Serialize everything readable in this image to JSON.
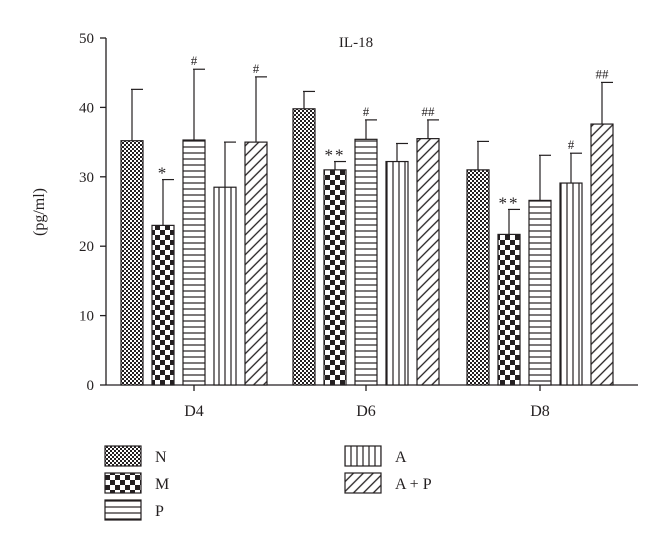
{
  "chart_data": {
    "type": "bar",
    "title": "IL-18",
    "xlabel": "",
    "ylabel": "(pg/ml)",
    "ylim": [
      0,
      50
    ],
    "yticks": [
      0,
      10,
      20,
      30,
      40,
      50
    ],
    "grid": false,
    "legend_position": "bottom",
    "categories": [
      "D4",
      "D6",
      "D8"
    ],
    "series": [
      {
        "name": "N",
        "pattern": "checker-fine",
        "values": [
          35.2,
          39.8,
          31.0
        ],
        "error": [
          7.4,
          2.5,
          4.1
        ],
        "annotations": [
          "",
          "",
          ""
        ]
      },
      {
        "name": "M",
        "pattern": "checker-coarse",
        "values": [
          23.0,
          31.0,
          21.7
        ],
        "error": [
          6.6,
          1.2,
          3.6
        ],
        "annotations": [
          "*",
          "**",
          "**"
        ]
      },
      {
        "name": "P",
        "pattern": "horizontal-lines",
        "values": [
          35.3,
          35.4,
          26.6
        ],
        "error": [
          10.2,
          2.8,
          6.5
        ],
        "annotations": [
          "#",
          "#",
          ""
        ]
      },
      {
        "name": "A",
        "pattern": "vertical-lines",
        "values": [
          28.5,
          32.2,
          29.1
        ],
        "error": [
          6.5,
          2.6,
          4.3
        ],
        "annotations": [
          "",
          "",
          "#"
        ]
      },
      {
        "name": "A + P",
        "pattern": "diagonal-lines",
        "values": [
          35.0,
          35.5,
          37.6
        ],
        "error": [
          9.4,
          2.7,
          6.0
        ],
        "annotations": [
          "#",
          "##",
          "##"
        ]
      }
    ]
  }
}
